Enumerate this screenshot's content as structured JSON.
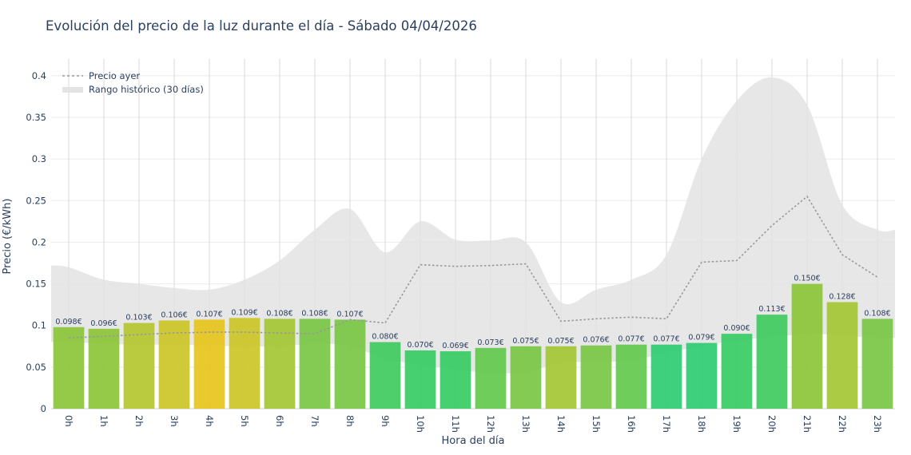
{
  "chart_data": {
    "type": "bar",
    "title": "Evolución del precio de la luz durante el día - Sábado 04/04/2026",
    "xlabel": "Hora del día",
    "ylabel": "Precio (€/kWh)",
    "ylim": [
      0,
      0.42
    ],
    "yticks": [
      0,
      0.05,
      0.1,
      0.15,
      0.2,
      0.25,
      0.3,
      0.35,
      0.4
    ],
    "ytick_labels": [
      "0",
      "0.05",
      "0.1",
      "0.15",
      "0.2",
      "0.25",
      "0.3",
      "0.35",
      "0.4"
    ],
    "grid": true,
    "legend_position": "top-left",
    "categories": [
      "0h",
      "1h",
      "2h",
      "3h",
      "4h",
      "5h",
      "6h",
      "7h",
      "8h",
      "9h",
      "10h",
      "11h",
      "12h",
      "13h",
      "14h",
      "15h",
      "16h",
      "17h",
      "18h",
      "19h",
      "20h",
      "21h",
      "22h",
      "23h"
    ],
    "series": [
      {
        "kind": "bar",
        "values": [
          0.098,
          0.096,
          0.103,
          0.106,
          0.107,
          0.109,
          0.108,
          0.108,
          0.107,
          0.08,
          0.07,
          0.069,
          0.073,
          0.075,
          0.075,
          0.076,
          0.077,
          0.077,
          0.079,
          0.09,
          0.113,
          0.15,
          0.128,
          0.108
        ],
        "labels": [
          "0.098€",
          "0.096€",
          "0.103€",
          "0.106€",
          "0.107€",
          "0.109€",
          "0.108€",
          "0.108€",
          "0.107€",
          "0.080€",
          "0.070€",
          "0.069€",
          "0.073€",
          "0.075€",
          "0.075€",
          "0.076€",
          "0.077€",
          "0.077€",
          "0.079€",
          "0.090€",
          "0.113€",
          "0.150€",
          "0.128€",
          "0.108€"
        ],
        "colors": [
          "#8cc63a",
          "#8cc63a",
          "#b5c72f",
          "#cdc627",
          "#e6c41c",
          "#cdc627",
          "#a4c734",
          "#7ac744",
          "#7ac744",
          "#3fcb5e",
          "#37cc63",
          "#37cc63",
          "#63c94e",
          "#7ac744",
          "#a4c734",
          "#7ac744",
          "#63c94e",
          "#2ecc71",
          "#2ecc71",
          "#37cc63",
          "#3fcb5e",
          "#8cc63a",
          "#a4c734",
          "#7ac744"
        ]
      },
      {
        "name": "Precio ayer",
        "kind": "line",
        "color": "#999999",
        "values": [
          0.085,
          0.087,
          0.089,
          0.091,
          0.092,
          0.092,
          0.091,
          0.09,
          0.107,
          0.103,
          0.173,
          0.171,
          0.172,
          0.174,
          0.105,
          0.108,
          0.11,
          0.108,
          0.176,
          0.178,
          0.22,
          0.255,
          0.185,
          0.158
        ]
      },
      {
        "name": "Rango histórico (30 días)",
        "kind": "band",
        "color": "#e3e3e3",
        "upper": [
          0.17,
          0.155,
          0.15,
          0.145,
          0.143,
          0.155,
          0.178,
          0.215,
          0.24,
          0.188,
          0.225,
          0.203,
          0.202,
          0.2,
          0.128,
          0.143,
          0.155,
          0.185,
          0.3,
          0.37,
          0.398,
          0.365,
          0.245,
          0.215
        ],
        "lower": [
          0.08,
          0.078,
          0.077,
          0.077,
          0.076,
          0.075,
          0.075,
          0.078,
          0.075,
          0.06,
          0.053,
          0.047,
          0.043,
          0.044,
          0.055,
          0.056,
          0.058,
          0.067,
          0.075,
          0.082,
          0.086,
          0.09,
          0.088,
          0.085
        ]
      }
    ]
  }
}
